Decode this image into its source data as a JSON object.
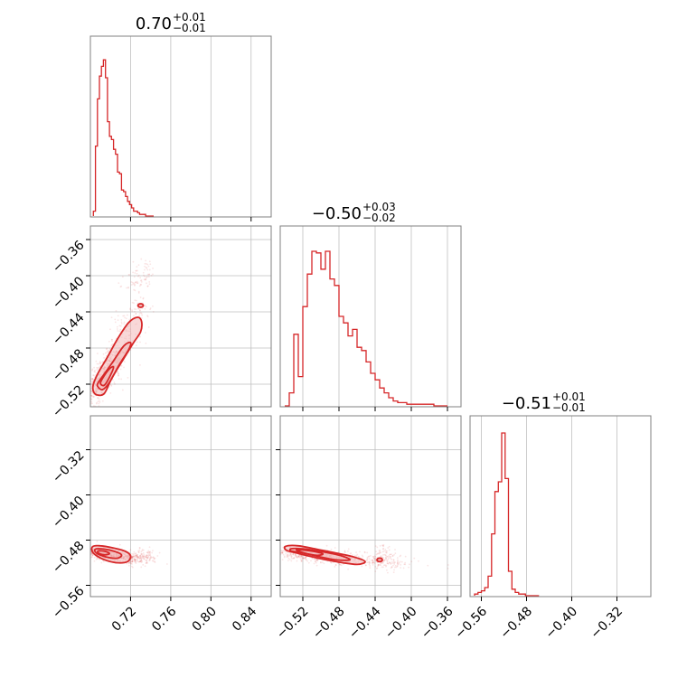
{
  "chart_data": {
    "type": "scatter",
    "title": "",
    "panel_titles": [
      {
        "value": "0.70",
        "upper": "+0.01",
        "lower": "−0.01"
      },
      {
        "value": "−0.50",
        "upper": "+0.03",
        "lower": "−0.02"
      },
      {
        "value": "−0.51",
        "upper": "+0.01",
        "lower": "−0.01"
      }
    ],
    "parameters": [
      {
        "range": [
          0.68,
          0.86
        ],
        "ticks": [
          0.72,
          0.76,
          0.8,
          0.84
        ],
        "tick_labels": [
          "0.72",
          "0.76",
          "0.80",
          "0.84"
        ]
      },
      {
        "range": [
          -0.545,
          -0.345
        ],
        "ticks": [
          -0.52,
          -0.48,
          -0.44,
          -0.4,
          -0.36
        ],
        "tick_labels": [
          "−0.52",
          "−0.48",
          "−0.44",
          "−0.40",
          "−0.36"
        ]
      },
      {
        "range": [
          -0.58,
          -0.26
        ],
        "ticks": [
          -0.56,
          -0.48,
          -0.4,
          -0.32
        ],
        "tick_labels": [
          "−0.56",
          "−0.48",
          "−0.40",
          "−0.32"
        ]
      }
    ],
    "histograms": [
      {
        "param": 0,
        "bins": [
          0.683,
          0.685,
          0.687,
          0.689,
          0.691,
          0.693,
          0.695,
          0.697,
          0.699,
          0.701,
          0.703,
          0.705,
          0.707,
          0.709,
          0.711,
          0.713,
          0.715,
          0.717,
          0.719,
          0.721,
          0.723,
          0.725,
          0.727,
          0.729,
          0.731,
          0.733,
          0.735,
          0.737,
          0.739,
          0.741,
          0.743
        ],
        "counts": [
          0.03,
          0.43,
          0.72,
          0.86,
          0.92,
          0.96,
          0.85,
          0.58,
          0.49,
          0.47,
          0.41,
          0.38,
          0.27,
          0.26,
          0.16,
          0.15,
          0.12,
          0.09,
          0.07,
          0.05,
          0.03,
          0.03,
          0.02,
          0.01,
          0.01,
          0.01,
          0,
          0,
          0,
          0
        ]
      },
      {
        "param": 1,
        "bins": [
          -0.54,
          -0.535,
          -0.53,
          -0.525,
          -0.52,
          -0.515,
          -0.51,
          -0.505,
          -0.5,
          -0.495,
          -0.49,
          -0.485,
          -0.48,
          -0.475,
          -0.47,
          -0.465,
          -0.46,
          -0.455,
          -0.45,
          -0.445,
          -0.44,
          -0.435,
          -0.43,
          -0.425,
          -0.42,
          -0.415,
          -0.41,
          -0.405,
          -0.4,
          -0.395,
          -0.39,
          -0.385,
          -0.38,
          -0.375,
          -0.37,
          -0.365,
          -0.36
        ],
        "counts": [
          0.0,
          0.08,
          0.44,
          0.18,
          0.61,
          0.81,
          0.95,
          0.94,
          0.84,
          0.95,
          0.78,
          0.74,
          0.55,
          0.51,
          0.43,
          0.47,
          0.36,
          0.34,
          0.27,
          0.2,
          0.16,
          0.11,
          0.08,
          0.05,
          0.03,
          0.02,
          0.02,
          0.01,
          0.01,
          0.01,
          0.01,
          0.01,
          0.01,
          0.0,
          0.0,
          0.0
        ]
      },
      {
        "param": 2,
        "bins": [
          -0.572,
          -0.566,
          -0.56,
          -0.554,
          -0.548,
          -0.542,
          -0.536,
          -0.53,
          -0.524,
          -0.518,
          -0.512,
          -0.506,
          -0.5,
          -0.494,
          -0.488,
          -0.482,
          -0.476,
          -0.47,
          -0.464,
          -0.458
        ],
        "counts": [
          0.01,
          0.02,
          0.03,
          0.05,
          0.12,
          0.38,
          0.64,
          0.7,
          1.0,
          0.72,
          0.15,
          0.04,
          0.02,
          0.01,
          0.01,
          0.0,
          0.0,
          0.0,
          0.0
        ]
      }
    ],
    "scatter_2d": [
      {
        "x_param": 0,
        "y_param": 1,
        "center": [
          0.695,
          -0.508
        ],
        "major_sigma": 0.018,
        "minor_sigma": 0.006,
        "direction": [
          0.035,
          0.06
        ],
        "tail_points": [
          [
            0.73,
            -0.436
          ],
          [
            0.735,
            -0.395
          ],
          [
            0.725,
            -0.41
          ],
          [
            0.712,
            -0.455
          ]
        ]
      },
      {
        "x_param": 0,
        "y_param": 2,
        "center": [
          0.697,
          -0.505
        ],
        "major_sigma": 0.014,
        "minor_sigma": 0.005,
        "direction": [
          1.0,
          -0.25
        ],
        "tail_points": [
          [
            0.725,
            -0.515
          ],
          [
            0.732,
            -0.505
          ],
          [
            0.738,
            -0.51
          ]
        ]
      },
      {
        "x_param": 1,
        "y_param": 2,
        "center": [
          -0.505,
          -0.508
        ],
        "major_sigma": 0.035,
        "minor_sigma": 0.006,
        "direction": [
          1.0,
          -0.14
        ],
        "tail_points": [
          [
            -0.435,
            -0.515
          ],
          [
            -0.43,
            -0.505
          ],
          [
            -0.42,
            -0.52
          ]
        ]
      }
    ],
    "contours": [
      {
        "x_param": 0,
        "y_param": 1,
        "levels": [
          [
            [
              0.683,
              -0.528
            ],
            [
              0.687,
              -0.532
            ],
            [
              0.694,
              -0.53
            ],
            [
              0.702,
              -0.512
            ],
            [
              0.713,
              -0.492
            ],
            [
              0.723,
              -0.474
            ],
            [
              0.73,
              -0.462
            ],
            [
              0.731,
              -0.451
            ],
            [
              0.727,
              -0.446
            ],
            [
              0.718,
              -0.452
            ],
            [
              0.707,
              -0.47
            ],
            [
              0.697,
              -0.49
            ],
            [
              0.688,
              -0.507
            ],
            [
              0.683,
              -0.52
            ]
          ],
          [
            [
              0.687,
              -0.522
            ],
            [
              0.692,
              -0.526
            ],
            [
              0.699,
              -0.518
            ],
            [
              0.709,
              -0.498
            ],
            [
              0.718,
              -0.482
            ],
            [
              0.72,
              -0.474
            ],
            [
              0.713,
              -0.478
            ],
            [
              0.702,
              -0.496
            ],
            [
              0.693,
              -0.51
            ],
            [
              0.688,
              -0.518
            ]
          ],
          [
            [
              0.69,
              -0.519
            ],
            [
              0.694,
              -0.521
            ],
            [
              0.7,
              -0.51
            ],
            [
              0.703,
              -0.501
            ],
            [
              0.699,
              -0.503
            ],
            [
              0.693,
              -0.512
            ]
          ]
        ],
        "islands": [
          [
            0.73,
            -0.433
          ]
        ]
      },
      {
        "x_param": 0,
        "y_param": 2,
        "levels": [
          [
            [
              0.682,
              -0.492
            ],
            [
              0.69,
              -0.49
            ],
            [
              0.703,
              -0.494
            ],
            [
              0.715,
              -0.5
            ],
            [
              0.72,
              -0.508
            ],
            [
              0.717,
              -0.518
            ],
            [
              0.706,
              -0.52
            ],
            [
              0.693,
              -0.514
            ],
            [
              0.683,
              -0.503
            ]
          ],
          [
            [
              0.685,
              -0.496
            ],
            [
              0.694,
              -0.496
            ],
            [
              0.704,
              -0.5
            ],
            [
              0.711,
              -0.506
            ],
            [
              0.707,
              -0.512
            ],
            [
              0.696,
              -0.51
            ],
            [
              0.686,
              -0.503
            ]
          ],
          [
            [
              0.688,
              -0.499
            ],
            [
              0.695,
              -0.5
            ],
            [
              0.699,
              -0.504
            ],
            [
              0.694,
              -0.506
            ],
            [
              0.688,
              -0.503
            ]
          ]
        ],
        "islands": []
      },
      {
        "x_param": 1,
        "y_param": 2,
        "levels": [
          [
            [
              -0.539,
              -0.491
            ],
            [
              -0.525,
              -0.49
            ],
            [
              -0.505,
              -0.496
            ],
            [
              -0.483,
              -0.503
            ],
            [
              -0.463,
              -0.51
            ],
            [
              -0.451,
              -0.518
            ],
            [
              -0.46,
              -0.523
            ],
            [
              -0.48,
              -0.519
            ],
            [
              -0.503,
              -0.512
            ],
            [
              -0.524,
              -0.504
            ],
            [
              -0.538,
              -0.498
            ]
          ],
          [
            [
              -0.532,
              -0.495
            ],
            [
              -0.516,
              -0.496
            ],
            [
              -0.497,
              -0.501
            ],
            [
              -0.477,
              -0.508
            ],
            [
              -0.468,
              -0.515
            ],
            [
              -0.483,
              -0.515
            ],
            [
              -0.503,
              -0.509
            ],
            [
              -0.522,
              -0.502
            ],
            [
              -0.533,
              -0.499
            ]
          ],
          [
            [
              -0.527,
              -0.497
            ],
            [
              -0.512,
              -0.499
            ],
            [
              -0.498,
              -0.504
            ],
            [
              -0.504,
              -0.507
            ],
            [
              -0.518,
              -0.503
            ]
          ]
        ],
        "islands": [
          [
            -0.435,
            -0.515
          ]
        ]
      }
    ]
  },
  "colors": {
    "series": "#d62728",
    "fill": "#f2b8b8",
    "grid": "#bfbfbf",
    "frame": "#808080"
  }
}
